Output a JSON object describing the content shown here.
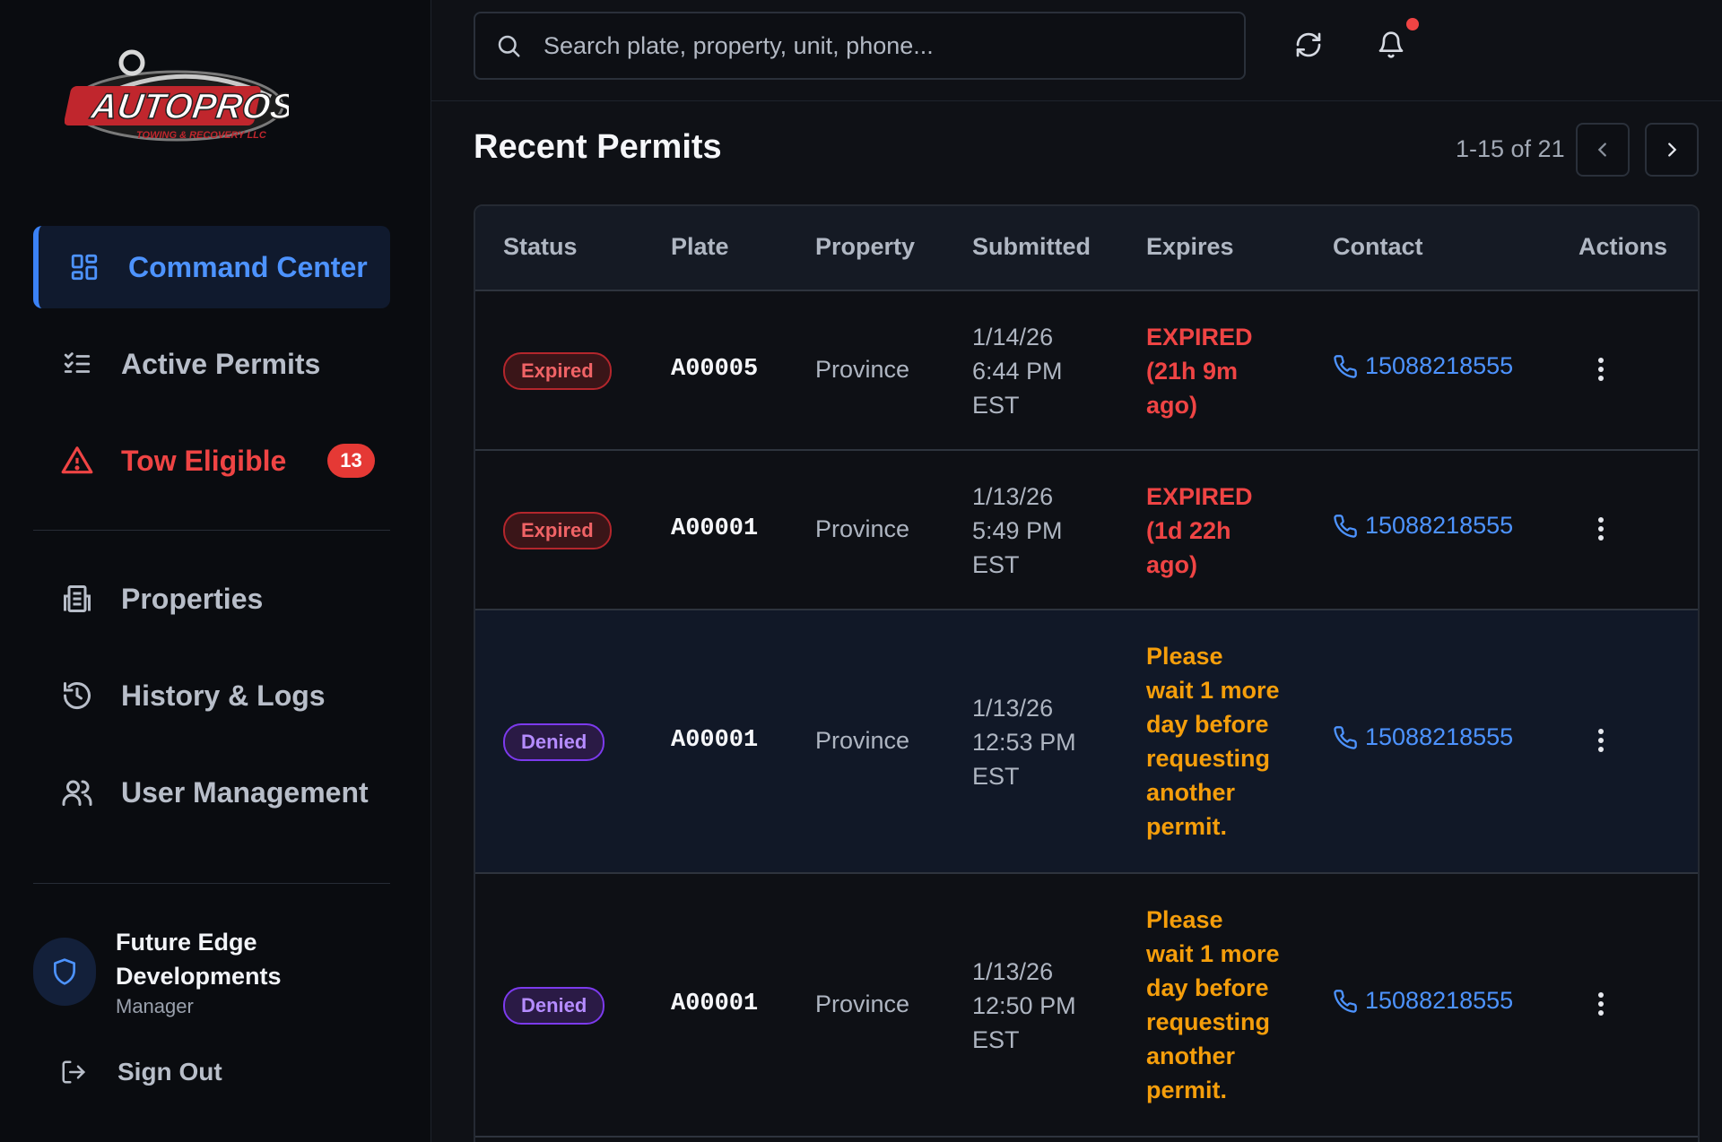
{
  "brand": {
    "logo_text": "AUTOPROS",
    "logo_subtext": "TOWING & RECOVERY LLC"
  },
  "sidebar": {
    "items": [
      {
        "label": "Command Center",
        "icon": "grid-icon",
        "active": true
      },
      {
        "label": "Active Permits",
        "icon": "checklist-icon"
      },
      {
        "label": "Tow Eligible",
        "icon": "warning-icon",
        "badge": "13"
      },
      {
        "label": "Properties",
        "icon": "building-icon"
      },
      {
        "label": "History & Logs",
        "icon": "history-icon"
      },
      {
        "label": "User Management",
        "icon": "users-icon"
      }
    ],
    "user": {
      "name": "Future Edge Developments",
      "role": "Manager"
    },
    "signout_label": "Sign Out"
  },
  "search": {
    "placeholder": "Search plate, property, unit, phone..."
  },
  "main": {
    "title": "Recent Permits",
    "pagination": "1-15 of 21"
  },
  "table": {
    "headers": [
      "Status",
      "Plate",
      "Property",
      "Submitted",
      "Expires",
      "Contact",
      "Actions"
    ],
    "rows": [
      {
        "status": "Expired",
        "plate": "A00005",
        "property": "Province",
        "submitted": [
          "1/14/26",
          "6:44 PM",
          "EST"
        ],
        "expires": [
          "EXPIRED",
          "(21h 9m",
          "ago)"
        ],
        "contact": "15088218555"
      },
      {
        "status": "Expired",
        "plate": "A00001",
        "property": "Province",
        "submitted": [
          "1/13/26",
          "5:49 PM",
          "EST"
        ],
        "expires": [
          "EXPIRED",
          "(1d 22h",
          "ago)"
        ],
        "contact": "15088218555"
      },
      {
        "status": "Denied",
        "plate": "A00001",
        "property": "Province",
        "submitted": [
          "1/13/26",
          "12:53 PM",
          "EST"
        ],
        "expires": [
          "Please",
          "wait 1 more",
          "day before",
          "requesting",
          "another",
          "permit."
        ],
        "contact": "15088218555"
      },
      {
        "status": "Denied",
        "plate": "A00001",
        "property": "Province",
        "submitted": [
          "1/13/26",
          "12:50 PM",
          "EST"
        ],
        "expires": [
          "Please",
          "wait 1 more",
          "day before",
          "requesting",
          "another",
          "permit."
        ],
        "contact": "15088218555"
      }
    ]
  },
  "colors": {
    "accent": "#3b82f6",
    "danger": "#ef4444",
    "warning": "#f59e0b",
    "denied": "#7c3aed"
  }
}
